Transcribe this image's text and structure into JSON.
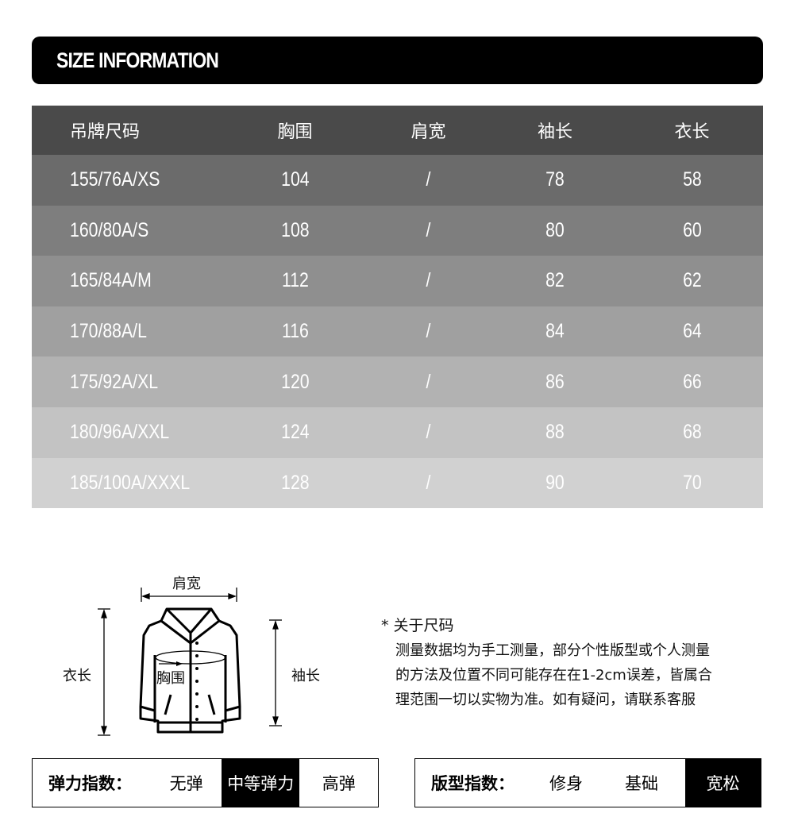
{
  "banner": {
    "title": "SIZE INFORMATION"
  },
  "table": {
    "headers": [
      "吊牌尺码",
      "胸围",
      "肩宽",
      "袖长",
      "衣长"
    ],
    "rows": [
      [
        "155/76A/XS",
        "104",
        "/",
        "78",
        "58"
      ],
      [
        "160/80A/S",
        "108",
        "/",
        "80",
        "60"
      ],
      [
        "165/84A/M",
        "112",
        "/",
        "82",
        "62"
      ],
      [
        "170/88A/L",
        "116",
        "/",
        "84",
        "64"
      ],
      [
        "175/92A/XL",
        "120",
        "/",
        "86",
        "66"
      ],
      [
        "180/96A/XXL",
        "124",
        "/",
        "88",
        "68"
      ],
      [
        "185/100A/XXXL",
        "128",
        "/",
        "90",
        "70"
      ]
    ],
    "row_colors": [
      "#6b6b6b",
      "#7e7e7e",
      "#8f8f8f",
      "#a0a0a0",
      "#b2b2b2",
      "#c3c3c3",
      "#d1d1d1"
    ]
  },
  "diagram": {
    "shoulder": "肩宽",
    "length": "衣长",
    "chest": "胸围",
    "sleeve": "袖长"
  },
  "note": {
    "title": "* 关于尺码",
    "lines": [
      "测量数据均为手工测量，部分个性版型或个人测量",
      "的方法及位置不同可能存在在1-2cm误差，皆属合",
      "理范围一切以实物为准。如有疑问，请联系客服"
    ]
  },
  "elasticity": {
    "label": "弹力指数：",
    "options": [
      "无弹",
      "中等弹力",
      "高弹"
    ],
    "selected": "中等弹力"
  },
  "fit": {
    "label": "版型指数：",
    "options": [
      "修身",
      "基础",
      "宽松"
    ],
    "selected": "宽松"
  }
}
